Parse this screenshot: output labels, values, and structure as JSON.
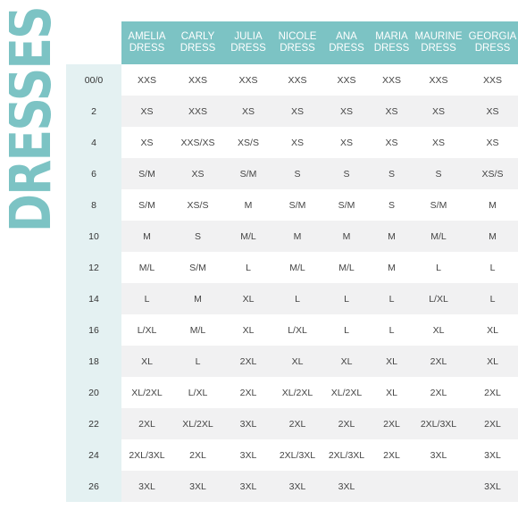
{
  "title": "DRESSES",
  "colors": {
    "accent": "#7cc3c4",
    "size_column_bg": "#e4f1f2",
    "stripe": "#f1f1f2"
  },
  "columns": [
    [
      "AMELIA",
      "DRESS"
    ],
    [
      "CARLY",
      "DRESS"
    ],
    [
      "JULIA",
      "DRESS"
    ],
    [
      "NICOLE",
      "DRESS"
    ],
    [
      "ANA",
      "DRESS"
    ],
    [
      "MARIA",
      "DRESS"
    ],
    [
      "MAURINE",
      "DRESS"
    ],
    [
      "GEORGIA",
      "DRESS"
    ]
  ],
  "rows": [
    {
      "size": "00/0",
      "values": [
        "XXS",
        "XXS",
        "XXS",
        "XXS",
        "XXS",
        "XXS",
        "XXS",
        "XXS"
      ]
    },
    {
      "size": "2",
      "values": [
        "XS",
        "XXS",
        "XS",
        "XS",
        "XS",
        "XS",
        "XS",
        "XS"
      ]
    },
    {
      "size": "4",
      "values": [
        "XS",
        "XXS/XS",
        "XS/S",
        "XS",
        "XS",
        "XS",
        "XS",
        "XS"
      ]
    },
    {
      "size": "6",
      "values": [
        "S/M",
        "XS",
        "S/M",
        "S",
        "S",
        "S",
        "S",
        "XS/S"
      ]
    },
    {
      "size": "8",
      "values": [
        "S/M",
        "XS/S",
        "M",
        "S/M",
        "S/M",
        "S",
        "S/M",
        "M"
      ]
    },
    {
      "size": "10",
      "values": [
        "M",
        "S",
        "M/L",
        "M",
        "M",
        "M",
        "M/L",
        "M"
      ]
    },
    {
      "size": "12",
      "values": [
        "M/L",
        "S/M",
        "L",
        "M/L",
        "M/L",
        "M",
        "L",
        "L"
      ]
    },
    {
      "size": "14",
      "values": [
        "L",
        "M",
        "XL",
        "L",
        "L",
        "L",
        "L/XL",
        "L"
      ]
    },
    {
      "size": "16",
      "values": [
        "L/XL",
        "M/L",
        "XL",
        "L/XL",
        "L",
        "L",
        "XL",
        "XL"
      ]
    },
    {
      "size": "18",
      "values": [
        "XL",
        "L",
        "2XL",
        "XL",
        "XL",
        "XL",
        "2XL",
        "XL"
      ]
    },
    {
      "size": "20",
      "values": [
        "XL/2XL",
        "L/XL",
        "2XL",
        "XL/2XL",
        "XL/2XL",
        "XL",
        "2XL",
        "2XL"
      ]
    },
    {
      "size": "22",
      "values": [
        "2XL",
        "XL/2XL",
        "3XL",
        "2XL",
        "2XL",
        "2XL",
        "2XL/3XL",
        "2XL"
      ]
    },
    {
      "size": "24",
      "values": [
        "2XL/3XL",
        "2XL",
        "3XL",
        "2XL/3XL",
        "2XL/3XL",
        "2XL",
        "3XL",
        "3XL"
      ]
    },
    {
      "size": "26",
      "values": [
        "3XL",
        "3XL",
        "3XL",
        "3XL",
        "3XL",
        "",
        "",
        "3XL"
      ]
    }
  ]
}
